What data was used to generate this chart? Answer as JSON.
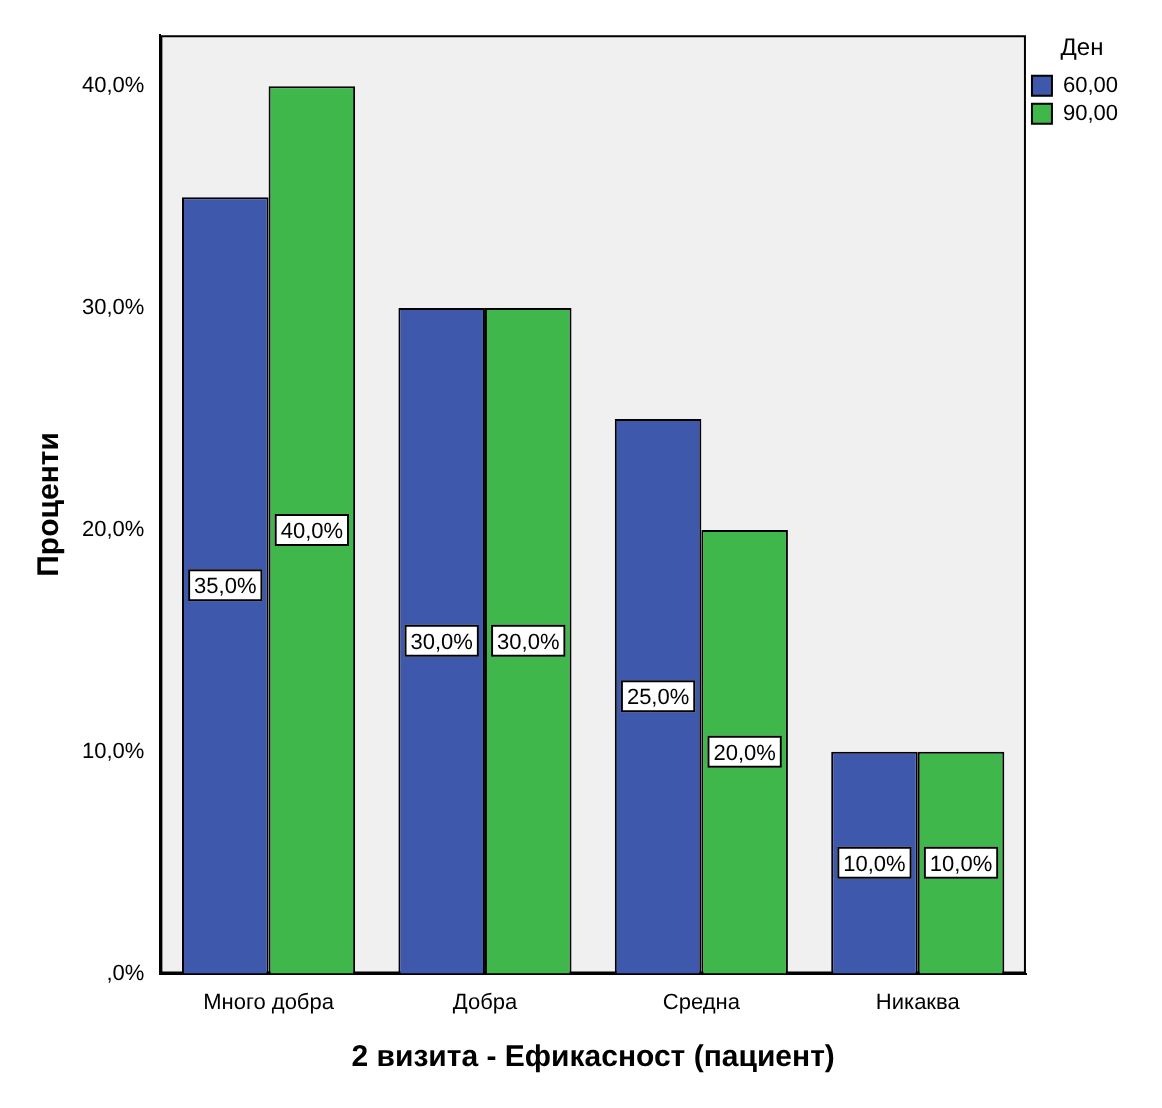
{
  "chart_data": {
    "type": "bar",
    "xlabel": "2 визита - Ефикасност (пациент)",
    "ylabel": "Проценти",
    "legend_title": "Ден",
    "legend": "top right",
    "categories": [
      "Много добра",
      "Добра",
      "Средна",
      "Никаква"
    ],
    "series": [
      {
        "name": "60,00",
        "color": "#3e58ac",
        "values": [
          35,
          30,
          25,
          10
        ],
        "value_labels": [
          "35,0%",
          "30,0%",
          "25,0%",
          "10,0%"
        ]
      },
      {
        "name": "90,00",
        "color": "#3fb74a",
        "values": [
          40,
          30,
          20,
          10
        ],
        "value_labels": [
          "40,0%",
          "30,0%",
          "20,0%",
          "10,0%"
        ]
      }
    ],
    "ylim": [
      0,
      42.3
    ],
    "yticks": [
      {
        "value": 0,
        "label": ",0%"
      },
      {
        "value": 10,
        "label": "10,0%"
      },
      {
        "value": 20,
        "label": "20,0%"
      },
      {
        "value": 30,
        "label": "30,0%"
      },
      {
        "value": 40,
        "label": "40,0%"
      }
    ]
  }
}
